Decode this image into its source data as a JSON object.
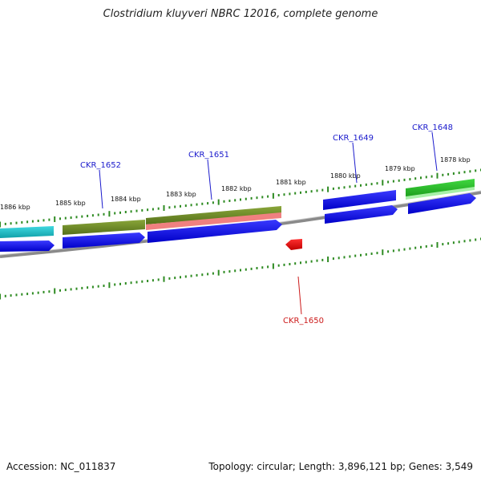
{
  "title": "Clostridium kluyveri NBRC 12016, complete genome",
  "footer": {
    "accession": "Accession: NC_011837",
    "summary": "Topology: circular; Length: 3,896,121 bp; Genes: 3,549"
  },
  "ruler_labels": [
    "1886 kbp",
    "1885 kbp",
    "1884 kbp",
    "1883 kbp",
    "1882 kbp",
    "1881 kbp",
    "1880 kbp",
    "1879 kbp",
    "1878 kbp"
  ],
  "genes": [
    {
      "name": "CKR_1652",
      "color": "#1a1acc"
    },
    {
      "name": "CKR_1651",
      "color": "#1a1acc"
    },
    {
      "name": "CKR_1649",
      "color": "#1a1acc"
    },
    {
      "name": "CKR_1648",
      "color": "#1a1acc"
    },
    {
      "name": "CKR_1650",
      "color": "#cc1a1a"
    }
  ],
  "colors": {
    "forward_cds": "#0a0ae6",
    "reverse_cds": "#e60a0a",
    "tick": "#2e8b22",
    "backbone": "#8a8a8a",
    "cyan_feature": "#20c0c8",
    "olive_feature": "#6b8a25",
    "green_feature": "#2ec82e",
    "pink_feature": "#f08080"
  }
}
